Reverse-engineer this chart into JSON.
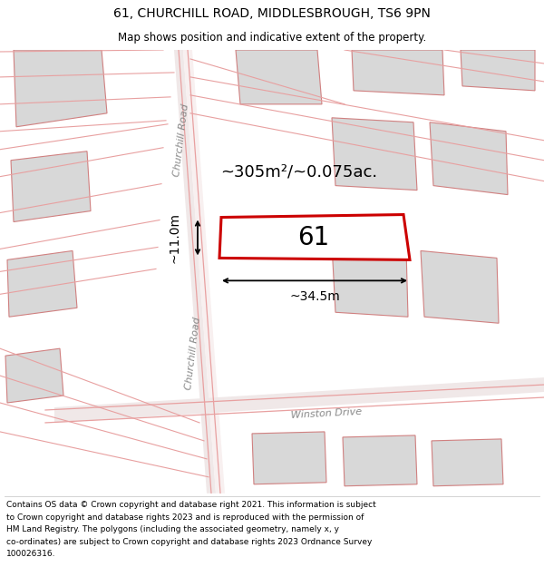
{
  "title_line1": "61, CHURCHILL ROAD, MIDDLESBROUGH, TS6 9PN",
  "title_line2": "Map shows position and indicative extent of the property.",
  "footer_lines": [
    "Contains OS data © Crown copyright and database right 2021. This information is subject",
    "to Crown copyright and database rights 2023 and is reproduced with the permission of",
    "HM Land Registry. The polygons (including the associated geometry, namely x, y",
    "co-ordinates) are subject to Crown copyright and database rights 2023 Ordnance Survey",
    "100026316."
  ],
  "property_label": "61",
  "area_label": "~305m²/~0.075ac.",
  "width_label": "~34.5m",
  "height_label": "~11.0m",
  "map_bg": "#ffffff",
  "property_fill": "#ffffff",
  "property_edge": "#cc0000",
  "building_fill": "#d8d8d8",
  "building_edge": "#d08080",
  "road_line_color": "#e8a0a0",
  "road_label_color": "#888888",
  "road_label1": "Churchill Road",
  "road_label2": "Churchill Road",
  "road_label3": "Winston Drive",
  "title_fontsize": 10,
  "subtitle_fontsize": 8.5,
  "footer_fontsize": 6.5,
  "area_fontsize": 13,
  "label_fontsize": 10,
  "prop_num_fontsize": 20
}
